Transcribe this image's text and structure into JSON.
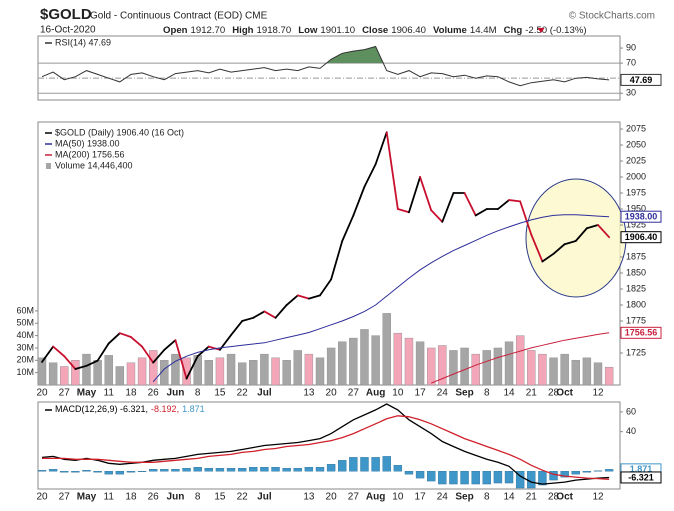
{
  "header": {
    "title": "$GOLD",
    "subtitle": "Gold - Continuous Contract (EOD) CME",
    "source": "© StockCharts.com",
    "date": "16-Oct-2020",
    "fields": [
      {
        "label": "Open",
        "value": "1912.70"
      },
      {
        "label": "High",
        "value": "1918.70"
      },
      {
        "label": "Low",
        "value": "1901.10"
      },
      {
        "label": "Close",
        "value": "1906.40"
      },
      {
        "label": "Volume",
        "value": "14.4M"
      },
      {
        "label": "Chg",
        "value": "-2.50 (-0.13%)"
      }
    ]
  },
  "chart_data": [
    {
      "type": "line",
      "categories": [
        "20",
        null,
        "27",
        null,
        "May",
        null,
        "11",
        null,
        "18",
        null,
        "26",
        null,
        "Jun",
        null,
        "8",
        null,
        "15",
        null,
        "22",
        null,
        "Jul",
        null,
        null,
        null,
        "13",
        null,
        "20",
        null,
        "27",
        null,
        "Aug",
        null,
        "10",
        null,
        "17",
        null,
        "24",
        null,
        "Sep",
        null,
        "8",
        null,
        "14",
        null,
        "21",
        null,
        "28",
        "Oct",
        null,
        null,
        "12",
        null
      ],
      "series": [
        {
          "name": "$GOLD (Daily) 1906.40 (16 Oct)",
          "color": "#000000",
          "down_color": "#c8102e",
          "end_label": "1906.40",
          "values": [
            1711,
            1735,
            1720,
            1700,
            1705,
            1713,
            1740,
            1756,
            1750,
            1735,
            1710,
            1730,
            1745,
            1685,
            1720,
            1735,
            1730,
            1753,
            1775,
            1780,
            1790,
            1780,
            1800,
            1815,
            1810,
            1815,
            1840,
            1900,
            1940,
            1985,
            2020,
            2070,
            1950,
            1945,
            2000,
            1948,
            1930,
            1975,
            1975,
            1940,
            1950,
            1950,
            1964,
            1962,
            1910,
            1868,
            1880,
            1895,
            1900,
            1920,
            1925,
            1906
          ]
        },
        {
          "name": "MA(50) 1938.00",
          "color": "#2e2e9a",
          "end_label": "1938.00",
          "values": [
            null,
            null,
            null,
            null,
            null,
            null,
            null,
            null,
            null,
            null,
            1680,
            1700,
            1712,
            1720,
            1726,
            1730,
            1733,
            1735,
            1737,
            1739,
            1741,
            1745,
            1749,
            1753,
            1757,
            1763,
            1769,
            1775,
            1782,
            1790,
            1800,
            1814,
            1828,
            1842,
            1855,
            1866,
            1876,
            1885,
            1893,
            1901,
            1909,
            1916,
            1922,
            1928,
            1933,
            1937,
            1940,
            1941,
            1941,
            1940,
            1939,
            1938
          ]
        },
        {
          "name": "MA(200) 1756.56",
          "color": "#c8203c",
          "end_label": "1756.56",
          "values": [
            null,
            null,
            null,
            null,
            null,
            null,
            null,
            null,
            null,
            null,
            null,
            null,
            null,
            null,
            null,
            null,
            null,
            null,
            null,
            null,
            null,
            null,
            null,
            null,
            null,
            null,
            null,
            null,
            null,
            null,
            null,
            null,
            null,
            null,
            null,
            1678,
            1685,
            1692,
            1699,
            1706,
            1712,
            1718,
            1723,
            1728,
            1733,
            1737,
            1741,
            1745,
            1748,
            1751,
            1754,
            1756.56
          ]
        },
        {
          "name": "Volume 14,446,400",
          "type": "bar",
          "axis": "y2",
          "color": "#a6a6a6",
          "down_color": "#f2a6b8",
          "values": [
            22000000,
            18000000,
            15000000,
            20000000,
            25000000,
            20000000,
            24000000,
            15000000,
            18000000,
            22000000,
            28000000,
            20000000,
            25000000,
            22000000,
            24000000,
            20000000,
            22000000,
            25000000,
            18000000,
            20000000,
            25000000,
            22000000,
            20000000,
            28000000,
            25000000,
            22000000,
            30000000,
            35000000,
            38000000,
            45000000,
            40000000,
            58000000,
            42000000,
            38000000,
            35000000,
            30000000,
            32000000,
            28000000,
            30000000,
            25000000,
            28000000,
            30000000,
            35000000,
            40000000,
            28000000,
            25000000,
            22000000,
            25000000,
            20000000,
            22000000,
            18000000,
            14446400
          ]
        }
      ],
      "ylim": [
        1675,
        2086
      ],
      "yticks": [
        2075,
        2050,
        2025,
        2000,
        1975,
        1950,
        1925,
        1875,
        1850,
        1825,
        1800,
        1775,
        1725
      ],
      "y2lim": [
        0,
        213000000
      ],
      "y2ticks": [
        {
          "value": 10000000,
          "label": "10M"
        },
        {
          "value": 20000000,
          "label": "20M"
        },
        {
          "value": 30000000,
          "label": "30M"
        },
        {
          "value": 40000000,
          "label": "40M"
        },
        {
          "value": 50000000,
          "label": "50M"
        },
        {
          "value": 60000000,
          "label": "60M"
        }
      ]
    },
    {
      "type": "line",
      "series": [
        {
          "name": "RSI(14) 47.69",
          "color": "#333333",
          "fill_color": "#5e8f5e",
          "end_label": "47.69",
          "values": [
            52,
            58,
            48,
            52,
            60,
            55,
            50,
            45,
            55,
            57,
            52,
            48,
            56,
            58,
            60,
            57,
            62,
            58,
            60,
            62,
            64,
            60,
            62,
            60,
            65,
            63,
            75,
            83,
            86,
            88,
            92,
            60,
            55,
            60,
            52,
            57,
            56,
            52,
            54,
            50,
            53,
            52,
            45,
            40,
            44,
            46,
            48,
            45,
            50,
            51,
            49,
            47.69
          ]
        }
      ],
      "ylim": [
        21,
        106
      ],
      "yticks": [
        90,
        70,
        30
      ],
      "levels": [
        70,
        50,
        30
      ],
      "fill_above": 70
    },
    {
      "type": "line",
      "series": [
        {
          "name": "MACD(12,26,9) -6.321,",
          "color": "#000000",
          "end_label": "-6.321",
          "values": [
            14,
            15,
            12,
            11,
            13,
            11,
            8,
            7,
            8,
            9,
            11,
            12,
            13,
            15,
            17,
            18,
            19,
            20,
            22,
            24,
            26,
            27,
            28,
            29,
            31,
            33,
            38,
            45,
            52,
            57,
            62,
            68,
            62,
            52,
            45,
            38,
            30,
            25,
            20,
            16,
            12,
            9,
            5,
            -5,
            -11,
            -13,
            -12,
            -11,
            -9,
            -8,
            -7,
            -6.321
          ]
        },
        {
          "name": "-8.192,",
          "color": "#d0202a",
          "values": [
            13,
            13,
            13,
            12,
            12,
            12,
            11,
            10,
            9,
            9,
            9,
            10,
            11,
            12,
            13,
            15,
            16,
            17,
            19,
            20,
            22,
            23,
            25,
            26,
            27,
            29,
            31,
            34,
            38,
            43,
            48,
            53,
            56,
            55,
            52,
            48,
            43,
            38,
            33,
            29,
            25,
            21,
            17,
            12,
            6,
            1,
            -3,
            -5,
            -6,
            -7,
            -7.5,
            -8.192
          ]
        },
        {
          "name": "1.871",
          "type": "bar",
          "color": "#3f96c8",
          "end_label": "1.871",
          "values": [
            1,
            2,
            -1,
            -1,
            1,
            -1,
            -3,
            -3,
            -1,
            0,
            2,
            2,
            2,
            3,
            4,
            3,
            3,
            3,
            3,
            4,
            4,
            4,
            3,
            3,
            4,
            4,
            7,
            11,
            14,
            14,
            14,
            15,
            6,
            -3,
            -7,
            -10,
            -13,
            -13,
            -13,
            -13,
            -13,
            -12,
            -12,
            -17,
            -17,
            -14,
            -9,
            -6,
            -3,
            -1,
            0.5,
            1.871
          ]
        }
      ],
      "ylim": [
        -18,
        70
      ],
      "yticks": [
        60,
        40
      ]
    }
  ]
}
